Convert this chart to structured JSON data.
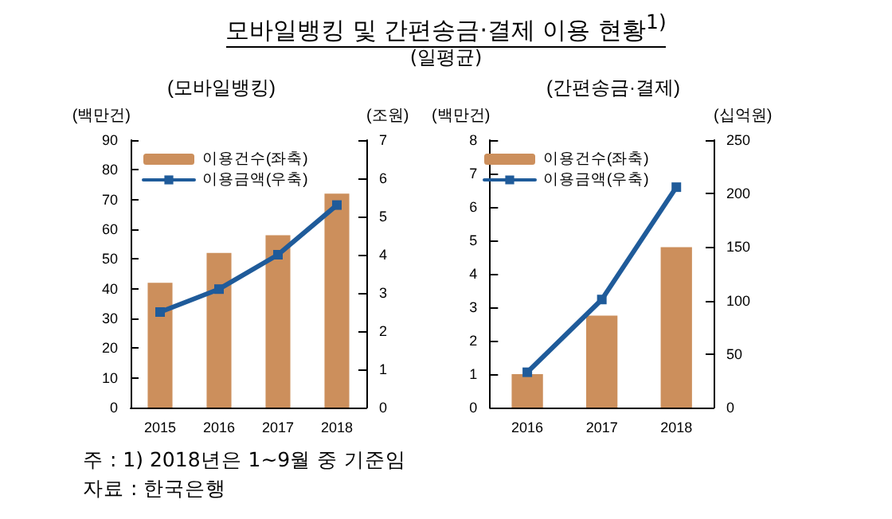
{
  "chart_data": [
    {
      "type": "bar",
      "title": "(모바일뱅킹)",
      "ylabel": "(백만건)",
      "y2label": "(조원)",
      "categories": [
        "2015",
        "2016",
        "2017",
        "2018"
      ],
      "series": [
        {
          "name": "이용건수(좌축)",
          "type": "bar",
          "color": "#cc8f5c",
          "values": [
            42,
            52,
            58,
            72
          ]
        },
        {
          "name": "이용금액(우축)",
          "type": "line",
          "axis": "y2",
          "color": "#1f5b9a",
          "values": [
            2.5,
            3.1,
            4.0,
            5.3
          ]
        }
      ],
      "ylim": [
        0,
        90
      ],
      "yticks": [
        0,
        10,
        20,
        30,
        40,
        50,
        60,
        70,
        80,
        90
      ],
      "y2lim": [
        0,
        7
      ],
      "y2ticks": [
        0,
        1,
        2,
        3,
        4,
        5,
        6,
        7
      ],
      "legend": "top left",
      "marker": "square",
      "annotations": [
        "모바일뱅킹 및 간편송금·결제 이용 현황$^{1)}$",
        "(일평균)",
        "주 : 1) 2018년은 1~9월 중 기준임",
        "자료 : 한국은행"
      ]
    },
    {
      "type": "bar",
      "title": "(간편송금·결제)",
      "ylabel": "(백만건)",
      "y2label": "(십억원)",
      "categories": [
        "2016",
        "2017",
        "2018"
      ],
      "series": [
        {
          "name": "이용건수(좌축)",
          "type": "bar",
          "color": "#cc8f5c",
          "values": [
            1.0,
            2.75,
            4.8
          ]
        },
        {
          "name": "이용금액(우축)",
          "type": "line",
          "axis": "y2",
          "color": "#1f5b9a",
          "values": [
            33,
            101,
            206
          ]
        }
      ],
      "ylim": [
        0,
        8
      ],
      "yticks": [
        0,
        1,
        2,
        3,
        4,
        5,
        6,
        7,
        8
      ],
      "y2lim": [
        0,
        250
      ],
      "y2ticks": [
        0,
        50,
        100,
        150,
        200,
        250
      ],
      "legend": "top left",
      "marker": "square"
    }
  ]
}
